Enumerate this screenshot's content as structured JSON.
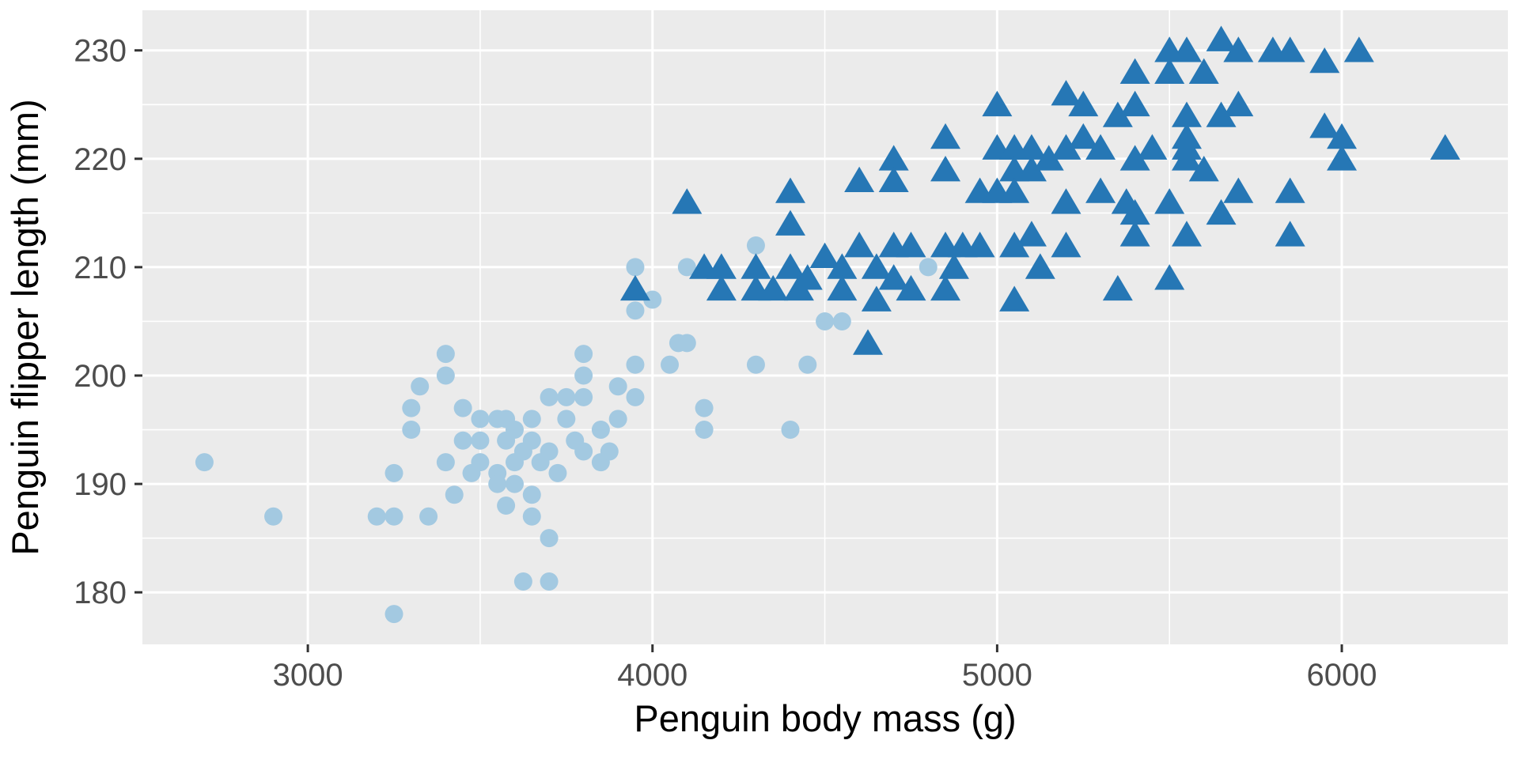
{
  "figure": {
    "title": "",
    "x_axis_title": "Penguin body mass (g)",
    "y_axis_title": "Penguin flipper length (mm)"
  },
  "chart_data": {
    "type": "scatter",
    "title": "",
    "xlabel": "Penguin body mass (g)",
    "ylabel": "Penguin flipper length (mm)",
    "xlim": [
      2520,
      6482
    ],
    "ylim": [
      175.2,
      233.7
    ],
    "x_ticks": [
      3000,
      4000,
      5000,
      6000
    ],
    "x_minor_ticks": [
      3500,
      4500,
      5500
    ],
    "y_ticks": [
      180,
      190,
      200,
      210,
      220,
      230
    ],
    "y_minor_ticks": [
      185,
      195,
      205,
      215,
      225
    ],
    "grid": true,
    "legend_position": "none",
    "panel_background": "#EBEBEB",
    "grid_color": "#FFFFFF",
    "tick_label_color": "#4d4d4d",
    "tick_mark_color": "#333333",
    "series": [
      {
        "name": "small-penguins-circles",
        "shape": "circle",
        "color": "#A3C9E1",
        "marker_radius": 11.5,
        "points": [
          [
            2700,
            192
          ],
          [
            2900,
            187
          ],
          [
            3200,
            187
          ],
          [
            3250,
            191
          ],
          [
            3250,
            187
          ],
          [
            3250,
            178
          ],
          [
            3300,
            197
          ],
          [
            3300,
            195
          ],
          [
            3325,
            199
          ],
          [
            3350,
            187
          ],
          [
            3400,
            202
          ],
          [
            3400,
            200
          ],
          [
            3400,
            192
          ],
          [
            3425,
            189
          ],
          [
            3450,
            197
          ],
          [
            3450,
            194
          ],
          [
            3475,
            191
          ],
          [
            3500,
            196
          ],
          [
            3500,
            194
          ],
          [
            3500,
            192
          ],
          [
            3550,
            196
          ],
          [
            3550,
            191
          ],
          [
            3550,
            190
          ],
          [
            3575,
            196
          ],
          [
            3575,
            194
          ],
          [
            3575,
            188
          ],
          [
            3600,
            195
          ],
          [
            3600,
            192
          ],
          [
            3600,
            190
          ],
          [
            3625,
            193
          ],
          [
            3625,
            181
          ],
          [
            3650,
            196
          ],
          [
            3650,
            194
          ],
          [
            3650,
            189
          ],
          [
            3650,
            187
          ],
          [
            3675,
            192
          ],
          [
            3700,
            198
          ],
          [
            3700,
            193
          ],
          [
            3700,
            185
          ],
          [
            3700,
            181
          ],
          [
            3725,
            191
          ],
          [
            3750,
            198
          ],
          [
            3750,
            196
          ],
          [
            3775,
            194
          ],
          [
            3800,
            202
          ],
          [
            3800,
            200
          ],
          [
            3800,
            198
          ],
          [
            3800,
            193
          ],
          [
            3850,
            195
          ],
          [
            3850,
            192
          ],
          [
            3875,
            193
          ],
          [
            3900,
            199
          ],
          [
            3900,
            196
          ],
          [
            3950,
            210
          ],
          [
            3950,
            206
          ],
          [
            3950,
            201
          ],
          [
            3950,
            198
          ],
          [
            4000,
            207
          ],
          [
            4050,
            201
          ],
          [
            4075,
            203
          ],
          [
            4100,
            210
          ],
          [
            4100,
            203
          ],
          [
            4150,
            197
          ],
          [
            4150,
            195
          ],
          [
            4300,
            212
          ],
          [
            4300,
            201
          ],
          [
            4400,
            195
          ],
          [
            4450,
            201
          ],
          [
            4500,
            205
          ],
          [
            4550,
            205
          ],
          [
            4800,
            210
          ]
        ]
      },
      {
        "name": "gentoo-triangles",
        "shape": "triangle",
        "color": "#2677B5",
        "marker_radius": 19,
        "points": [
          [
            3950,
            208
          ],
          [
            4100,
            216
          ],
          [
            4150,
            210
          ],
          [
            4200,
            210
          ],
          [
            4200,
            208
          ],
          [
            4300,
            210
          ],
          [
            4300,
            208
          ],
          [
            4350,
            208
          ],
          [
            4400,
            217
          ],
          [
            4400,
            214
          ],
          [
            4400,
            210
          ],
          [
            4425,
            208
          ],
          [
            4450,
            209
          ],
          [
            4500,
            211
          ],
          [
            4550,
            210
          ],
          [
            4550,
            208
          ],
          [
            4600,
            218
          ],
          [
            4600,
            212
          ],
          [
            4625,
            203
          ],
          [
            4650,
            210
          ],
          [
            4650,
            207
          ],
          [
            4700,
            220
          ],
          [
            4700,
            218
          ],
          [
            4700,
            212
          ],
          [
            4700,
            209
          ],
          [
            4750,
            212
          ],
          [
            4750,
            208
          ],
          [
            4850,
            222
          ],
          [
            4850,
            219
          ],
          [
            4850,
            212
          ],
          [
            4850,
            208
          ],
          [
            4875,
            210
          ],
          [
            4900,
            212
          ],
          [
            4950,
            217
          ],
          [
            4950,
            212
          ],
          [
            5000,
            225
          ],
          [
            5000,
            221
          ],
          [
            5000,
            217
          ],
          [
            5050,
            221
          ],
          [
            5050,
            219
          ],
          [
            5050,
            217
          ],
          [
            5050,
            212
          ],
          [
            5050,
            207
          ],
          [
            5100,
            221
          ],
          [
            5100,
            219
          ],
          [
            5100,
            213
          ],
          [
            5125,
            210
          ],
          [
            5150,
            220
          ],
          [
            5200,
            226
          ],
          [
            5200,
            221
          ],
          [
            5200,
            216
          ],
          [
            5200,
            212
          ],
          [
            5250,
            225
          ],
          [
            5250,
            222
          ],
          [
            5300,
            221
          ],
          [
            5300,
            217
          ],
          [
            5350,
            224
          ],
          [
            5350,
            208
          ],
          [
            5375,
            216
          ],
          [
            5400,
            228
          ],
          [
            5400,
            225
          ],
          [
            5400,
            220
          ],
          [
            5400,
            215
          ],
          [
            5400,
            213
          ],
          [
            5450,
            221
          ],
          [
            5500,
            230
          ],
          [
            5500,
            228
          ],
          [
            5500,
            216
          ],
          [
            5500,
            209
          ],
          [
            5550,
            230
          ],
          [
            5550,
            224
          ],
          [
            5550,
            222
          ],
          [
            5550,
            221
          ],
          [
            5550,
            220
          ],
          [
            5550,
            213
          ],
          [
            5600,
            228
          ],
          [
            5600,
            219
          ],
          [
            5650,
            231
          ],
          [
            5650,
            224
          ],
          [
            5650,
            215
          ],
          [
            5700,
            230
          ],
          [
            5700,
            225
          ],
          [
            5700,
            217
          ],
          [
            5800,
            230
          ],
          [
            5850,
            230
          ],
          [
            5850,
            217
          ],
          [
            5850,
            213
          ],
          [
            5950,
            229
          ],
          [
            5950,
            223
          ],
          [
            6000,
            222
          ],
          [
            6000,
            220
          ],
          [
            6050,
            230
          ],
          [
            6300,
            221
          ]
        ]
      }
    ]
  }
}
